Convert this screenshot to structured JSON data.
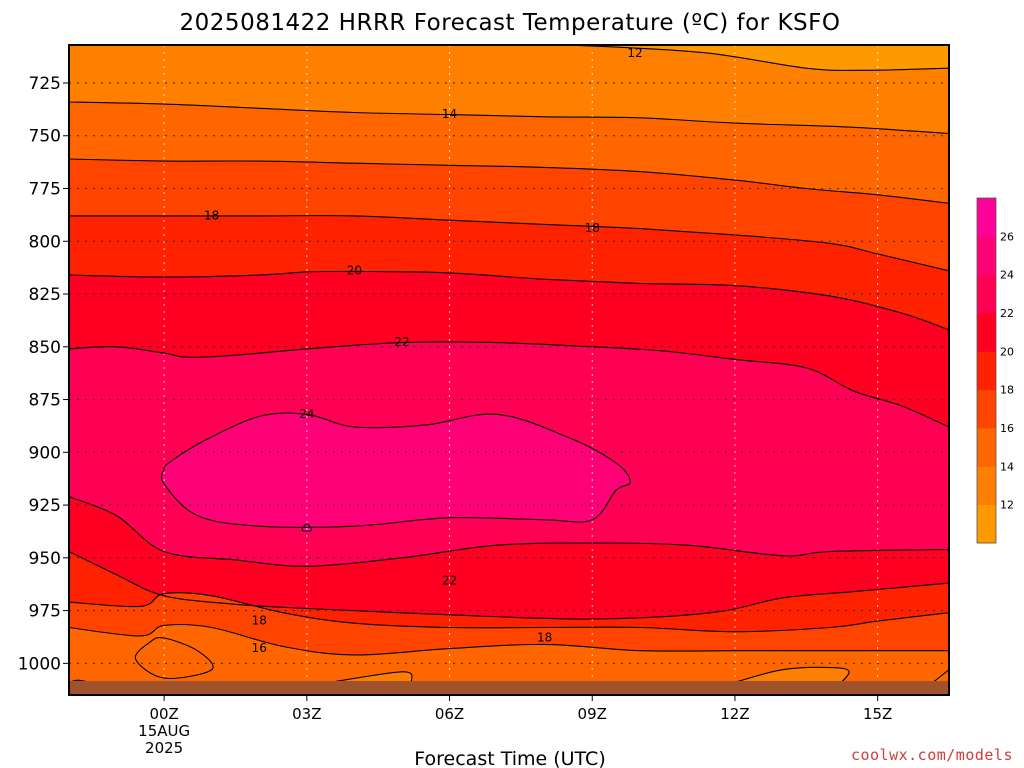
{
  "chart_data": {
    "type": "heatmap",
    "title": "2025081422 HRRR Forecast Temperature (ºC) for KSFO",
    "xlabel": "Forecast Time (UTC)",
    "ylabel": "",
    "y_unit": "hPa",
    "y_inverted": true,
    "grid": true,
    "x_hours_range": [
      -2,
      16.5
    ],
    "y_range_hpa": [
      707,
      1015
    ],
    "x_ticks": [
      {
        "hour": 0,
        "label": "00Z",
        "sub1": "15AUG",
        "sub2": "2025"
      },
      {
        "hour": 3,
        "label": "03Z",
        "sub1": "",
        "sub2": ""
      },
      {
        "hour": 6,
        "label": "06Z",
        "sub1": "",
        "sub2": ""
      },
      {
        "hour": 9,
        "label": "09Z",
        "sub1": "",
        "sub2": ""
      },
      {
        "hour": 12,
        "label": "12Z",
        "sub1": "",
        "sub2": ""
      },
      {
        "hour": 15,
        "label": "15Z",
        "sub1": "",
        "sub2": ""
      }
    ],
    "y_ticks": [
      725,
      750,
      775,
      800,
      825,
      850,
      875,
      900,
      925,
      950,
      975,
      1000
    ],
    "colorbar": {
      "levels": [
        10,
        12,
        14,
        16,
        18,
        20,
        22,
        24,
        26,
        28
      ],
      "tick_labels": [
        "12",
        "14",
        "16",
        "18",
        "20",
        "22",
        "24",
        "26"
      ],
      "colors": [
        "#ff9900",
        "#ff8000",
        "#ff6600",
        "#ff4400",
        "#ff2200",
        "#ff0022",
        "#ff0055",
        "#ff0077",
        "#ff0099"
      ]
    },
    "ground_color": "#a0522d",
    "contours": [
      {
        "label": "12",
        "level": 12,
        "points": [
          [
            -2,
            707
          ],
          [
            5,
            706
          ],
          [
            7,
            706
          ],
          [
            9.5,
            708
          ],
          [
            11.5,
            711
          ],
          [
            13.5,
            718
          ],
          [
            14.7,
            719
          ],
          [
            16.5,
            718
          ]
        ]
      },
      {
        "label": "14",
        "level": 14,
        "points": [
          [
            -2,
            734
          ],
          [
            0,
            735
          ],
          [
            2,
            737
          ],
          [
            4,
            739
          ],
          [
            6,
            740
          ],
          [
            8,
            741
          ],
          [
            10,
            741.5
          ],
          [
            12,
            744
          ],
          [
            14.5,
            746
          ],
          [
            16.5,
            749
          ]
        ]
      },
      {
        "label": "16",
        "level": 16,
        "points": [
          [
            -2,
            761
          ],
          [
            0,
            762
          ],
          [
            2,
            762
          ],
          [
            4,
            763
          ],
          [
            6,
            764
          ],
          [
            8,
            765
          ],
          [
            10,
            767
          ],
          [
            12,
            771
          ],
          [
            13.5,
            775
          ],
          [
            15,
            778
          ],
          [
            16.5,
            782
          ]
        ]
      },
      {
        "label": "18",
        "level": 18,
        "points": [
          [
            -2,
            788
          ],
          [
            0,
            788
          ],
          [
            2,
            788
          ],
          [
            4,
            788
          ],
          [
            6,
            790
          ],
          [
            8,
            792
          ],
          [
            10,
            794
          ],
          [
            12,
            797
          ],
          [
            14,
            801
          ],
          [
            15,
            806
          ],
          [
            16.5,
            814
          ]
        ]
      },
      {
        "label": "20",
        "level": 20,
        "points": [
          [
            -2,
            816
          ],
          [
            0,
            817
          ],
          [
            2,
            816
          ],
          [
            3,
            814.5
          ],
          [
            4,
            814.3
          ],
          [
            6,
            815
          ],
          [
            8,
            818
          ],
          [
            10,
            820
          ],
          [
            12,
            821
          ],
          [
            14,
            826
          ],
          [
            15.5,
            834
          ],
          [
            16.5,
            842
          ]
        ]
      },
      {
        "label": "22",
        "level": 22,
        "points": [
          [
            -2,
            851
          ],
          [
            -1,
            850
          ],
          [
            0,
            853
          ],
          [
            0.5,
            855
          ],
          [
            1.5,
            854
          ],
          [
            3,
            851
          ],
          [
            5,
            848
          ],
          [
            7,
            848
          ],
          [
            9,
            850
          ],
          [
            10.5,
            852
          ],
          [
            12,
            856
          ],
          [
            13.5,
            860
          ],
          [
            14.5,
            871
          ],
          [
            15.5,
            878
          ],
          [
            16.5,
            888
          ]
        ]
      },
      {
        "label": "24",
        "level": 24,
        "closed": true,
        "points": [
          [
            0.1,
            905
          ],
          [
            0,
            908
          ],
          [
            0,
            915
          ],
          [
            0.7,
            930
          ],
          [
            2,
            935
          ],
          [
            4,
            935
          ],
          [
            6,
            931
          ],
          [
            8,
            932
          ],
          [
            9,
            932
          ],
          [
            9.5,
            918
          ],
          [
            9.8,
            914
          ],
          [
            9.5,
            905
          ],
          [
            8.5,
            893
          ],
          [
            7,
            882
          ],
          [
            5.5,
            887
          ],
          [
            4,
            888
          ],
          [
            3,
            882
          ],
          [
            2,
            883
          ],
          [
            0.8,
            895
          ]
        ]
      },
      {
        "label": "",
        "level": 24,
        "closed": true,
        "points": [
          [
            2.9,
            937
          ],
          [
            3.1,
            937
          ],
          [
            3.0,
            934
          ]
        ]
      },
      {
        "label": "22",
        "level": 22,
        "points": [
          [
            -2,
            921
          ],
          [
            -1,
            930
          ],
          [
            0,
            947
          ],
          [
            1.5,
            951
          ],
          [
            3,
            954
          ],
          [
            5,
            950
          ],
          [
            7,
            944
          ],
          [
            9,
            943
          ],
          [
            11,
            944
          ],
          [
            13,
            949
          ],
          [
            14,
            947
          ],
          [
            16.5,
            946
          ]
        ]
      },
      {
        "label": "20",
        "level": 20,
        "points": [
          [
            -2,
            947
          ],
          [
            -1,
            958
          ],
          [
            0,
            968
          ],
          [
            1.5,
            972
          ],
          [
            3,
            974
          ],
          [
            6,
            977
          ],
          [
            9,
            979
          ],
          [
            11.5,
            976
          ],
          [
            13,
            969
          ],
          [
            14.5,
            966
          ],
          [
            16.5,
            962
          ]
        ]
      },
      {
        "label": "18",
        "level": 18,
        "points": [
          [
            -2,
            971
          ],
          [
            -0.5,
            973
          ],
          [
            0,
            967
          ],
          [
            1,
            968
          ],
          [
            2.5,
            976
          ],
          [
            4,
            981
          ],
          [
            6,
            983
          ],
          [
            8,
            983
          ],
          [
            10,
            983
          ],
          [
            12,
            985
          ],
          [
            14,
            983
          ],
          [
            15,
            980
          ],
          [
            16.5,
            976
          ]
        ]
      },
      {
        "label": "16",
        "level": 16,
        "closed": true,
        "points": [
          [
            -0.6,
            998
          ],
          [
            0,
            1007
          ],
          [
            1,
            1003
          ],
          [
            0.7,
            994
          ],
          [
            0,
            988
          ],
          [
            -0.3,
            990
          ]
        ]
      },
      {
        "label": "16",
        "level": 16,
        "points": [
          [
            -2,
            983
          ],
          [
            -0.5,
            987
          ],
          [
            0,
            982
          ],
          [
            1,
            983
          ],
          [
            2.5,
            992
          ],
          [
            4,
            996
          ],
          [
            6,
            993
          ],
          [
            8,
            991
          ],
          [
            10,
            994
          ],
          [
            12,
            994
          ],
          [
            14,
            994
          ],
          [
            16.5,
            994
          ]
        ]
      },
      {
        "label": "",
        "level": 14,
        "points": [
          [
            3.5,
            1009
          ],
          [
            5,
            1004
          ],
          [
            5.2,
            1008
          ],
          [
            5,
            1012
          ]
        ]
      },
      {
        "label": "",
        "level": 14,
        "points": [
          [
            12,
            1009
          ],
          [
            13,
            1003
          ],
          [
            14,
            1002
          ],
          [
            14.4,
            1004
          ],
          [
            14.1,
            1012
          ]
        ]
      },
      {
        "label": "",
        "level": 14,
        "points": [
          [
            -2,
            1009
          ],
          [
            -1.8,
            1008
          ],
          [
            -1.5,
            1009.5
          ]
        ]
      },
      {
        "label": "",
        "level": 14,
        "points": [
          [
            16,
            1012
          ],
          [
            16.5,
            1003
          ]
        ]
      }
    ],
    "contour_labels": [
      {
        "text": "12",
        "hour": 9.9,
        "hpa": 711
      },
      {
        "text": "14",
        "hour": 6.0,
        "hpa": 740
      },
      {
        "text": "18",
        "hour": 1.0,
        "hpa": 788
      },
      {
        "text": "18",
        "hour": 9.0,
        "hpa": 794
      },
      {
        "text": "20",
        "hour": 4.0,
        "hpa": 814
      },
      {
        "text": "22",
        "hour": 5.0,
        "hpa": 848
      },
      {
        "text": "24",
        "hour": 3.0,
        "hpa": 882
      },
      {
        "text": "22",
        "hour": 6.0,
        "hpa": 961
      },
      {
        "text": "18",
        "hour": 2.0,
        "hpa": 980
      },
      {
        "text": "18",
        "hour": 8.0,
        "hpa": 988
      },
      {
        "text": "16",
        "hour": 2.0,
        "hpa": 993
      }
    ]
  },
  "credit": "coolwx.com/models"
}
